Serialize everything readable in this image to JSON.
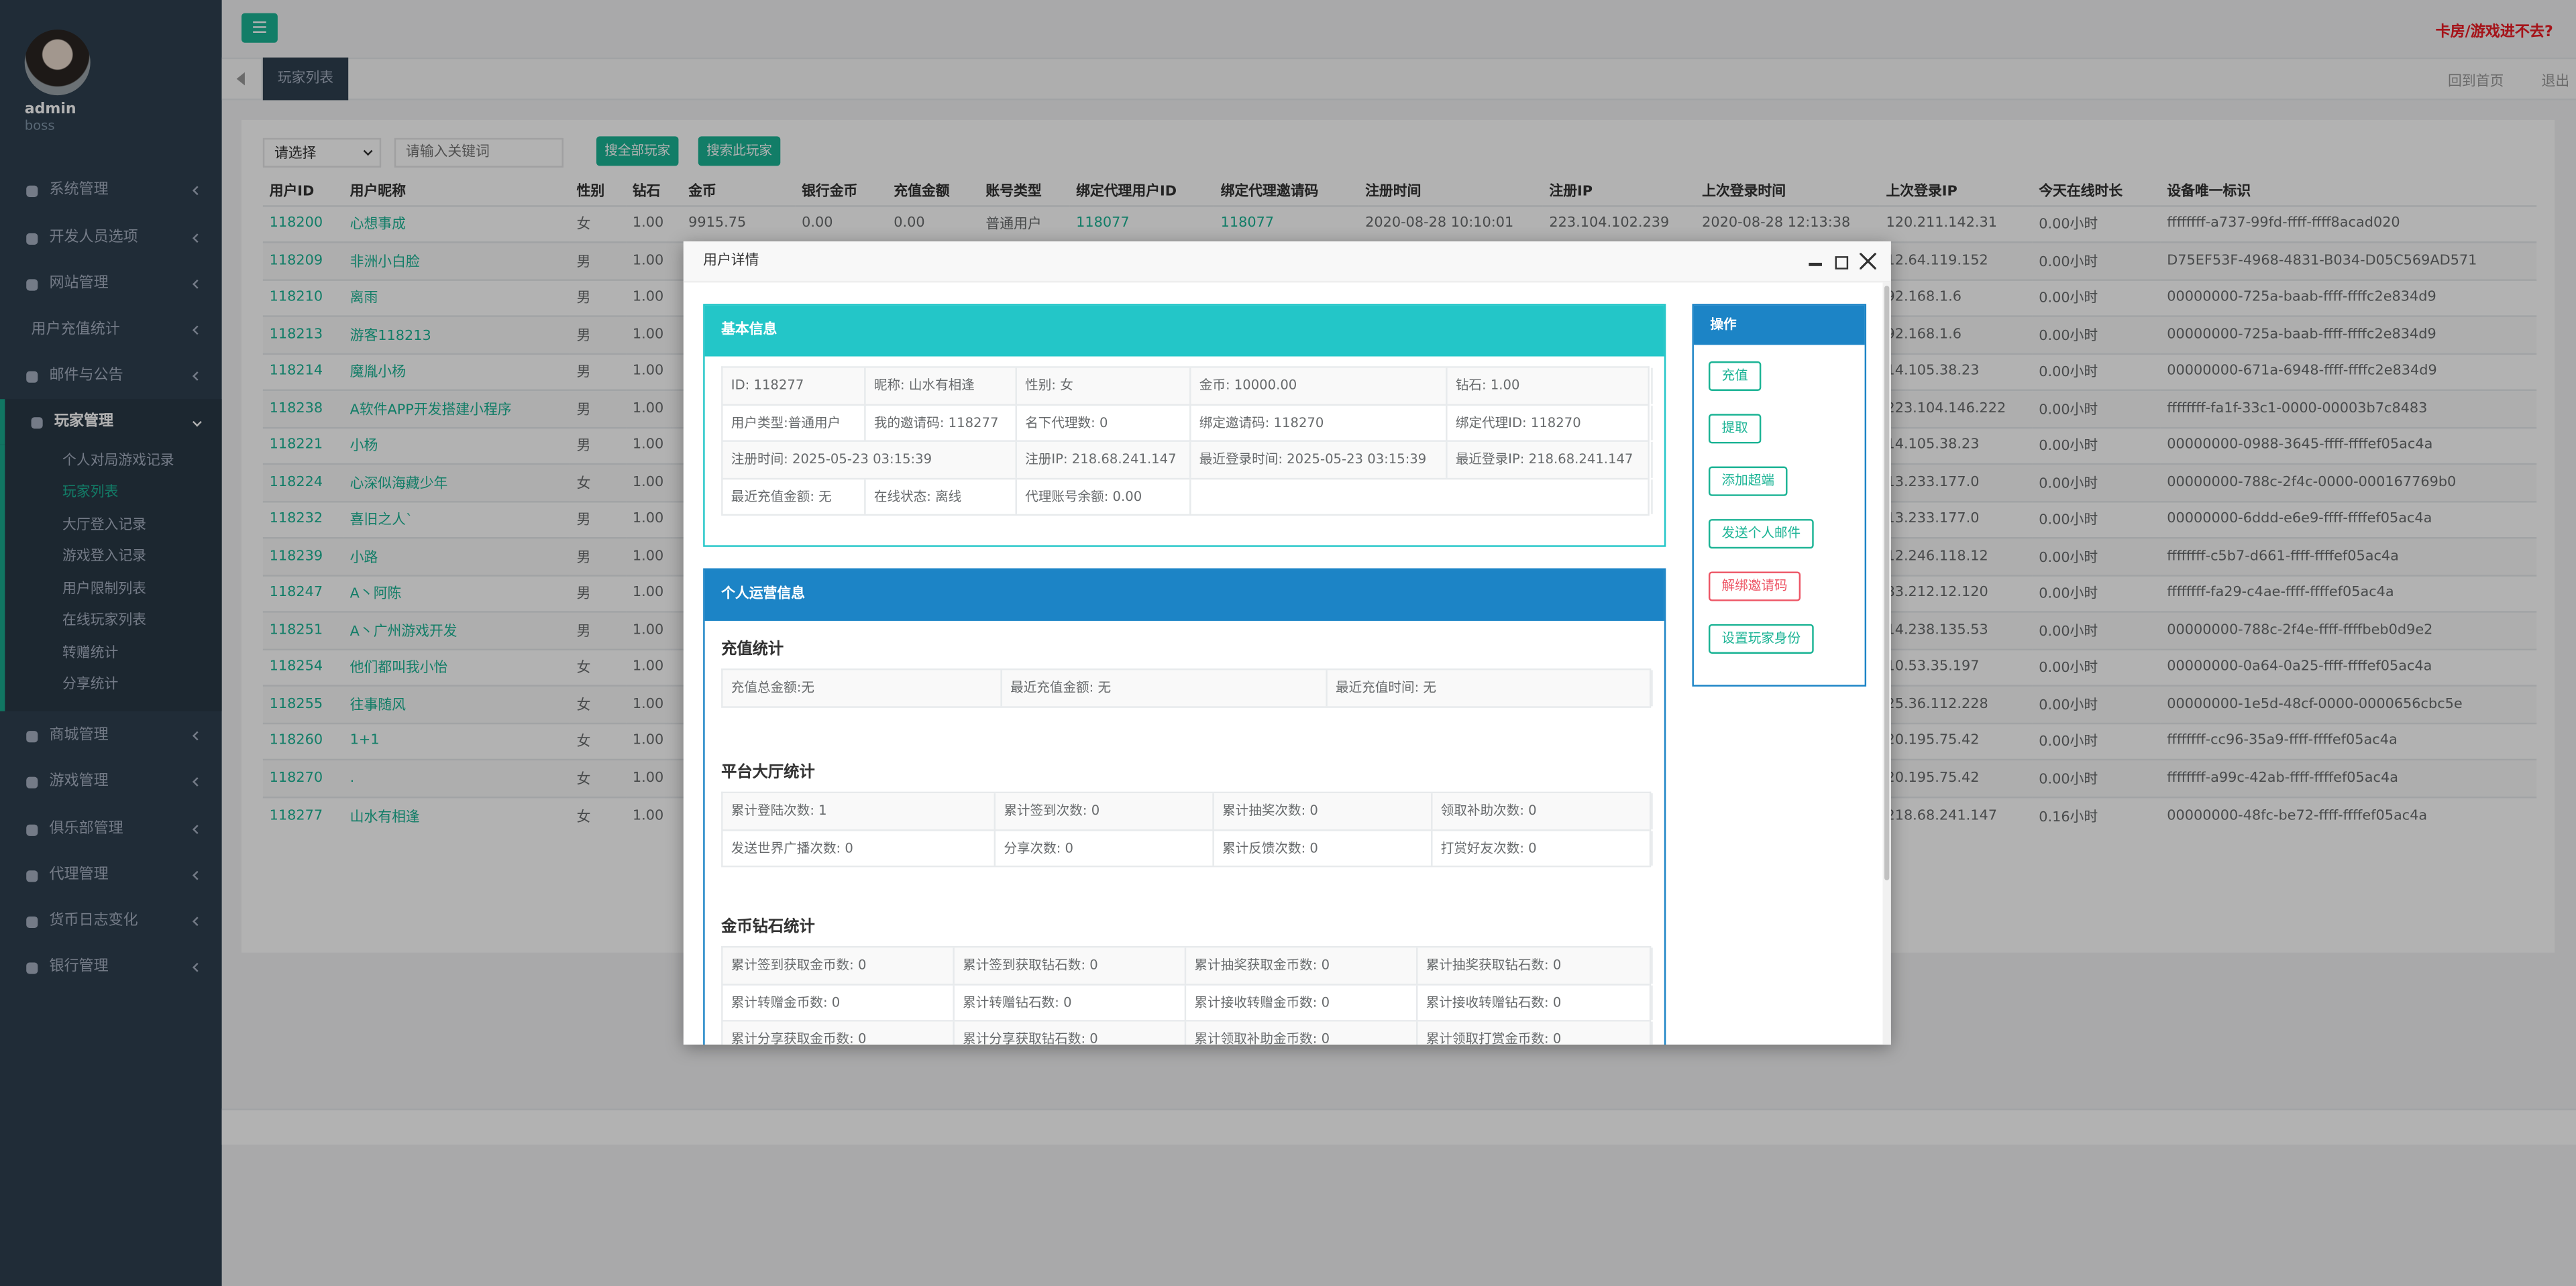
{
  "sidebar": {
    "username": "admin",
    "role": "boss",
    "menu": [
      {
        "label": "系统管理"
      },
      {
        "label": "开发人员选项"
      },
      {
        "label": "网站管理"
      },
      {
        "label": "用户充值统计"
      },
      {
        "label": "邮件与公告"
      },
      {
        "label": "玩家管理",
        "children": [
          "个人对局游戏记录",
          "玩家列表",
          "大厅登入记录",
          "游戏登入记录",
          "用户限制列表",
          "在线玩家列表",
          "转赠统计",
          "分享统计"
        ]
      },
      {
        "label": "商城管理"
      },
      {
        "label": "游戏管理"
      },
      {
        "label": "俱乐部管理"
      },
      {
        "label": "代理管理"
      },
      {
        "label": "货币日志变化"
      },
      {
        "label": "银行管理"
      }
    ]
  },
  "header": {
    "notice": "卡房/游戏进不去?",
    "tab": "玩家列表",
    "home": "回到首页",
    "logout": "退出"
  },
  "toolbar": {
    "select": "请选择",
    "search_placeholder": "请输入关键词",
    "buttons": [
      "搜全部玩家",
      "搜索此玩家"
    ]
  },
  "table": {
    "columns": [
      "用户ID",
      "用户昵称",
      "性别",
      "钻石",
      "金币",
      "银行金币",
      "充值金额",
      "账号类型",
      "绑定代理用户ID",
      "绑定代理邀请码",
      "注册时间",
      "注册IP",
      "上次登录时间",
      "上次登录IP",
      "今天在线时长",
      "设备唯一标识"
    ],
    "rows": [
      {
        "id": "118200",
        "nickname": "心想事成",
        "gender": "女",
        "diamond": "1.00",
        "gold": "9915.75",
        "bank_gold": "0.00",
        "recharge": "0.00",
        "account_type": "普通用户",
        "agent_id": "118077",
        "agent_code": "118077",
        "register_time": "2020-08-28 10:10:01",
        "register_ip": "223.104.102.239",
        "last_login_time": "2020-08-28 12:13:38",
        "last_login_ip": "120.211.142.31",
        "online": "0.00小时",
        "device": "ffffffff-a737-99fd-ffff-ffff8acad020"
      },
      {
        "id": "118209",
        "nickname": "非洲小白脸",
        "gender": "男",
        "diamond": "1.00",
        "last_login_ip": "12.64.119.152",
        "online": "0.00小时",
        "device": "D75EF53F-4968-4831-B034-D05C569AD571"
      },
      {
        "id": "118210",
        "nickname": "离雨",
        "gender": "男",
        "diamond": "1.00",
        "last_login_ip": "92.168.1.6",
        "online": "0.00小时",
        "device": "00000000-725a-baab-ffff-ffffc2e834d9"
      },
      {
        "id": "118213",
        "nickname": "游客118213",
        "gender": "男",
        "diamond": "1.00",
        "last_login_ip": "92.168.1.6",
        "online": "0.00小时",
        "device": "00000000-725a-baab-ffff-ffffc2e834d9"
      },
      {
        "id": "118214",
        "nickname": "魔胤小杨",
        "gender": "男",
        "diamond": "1.00",
        "last_login_ip": "14.105.38.23",
        "online": "0.00小时",
        "device": "00000000-671a-6948-ffff-ffffc2e834d9"
      },
      {
        "id": "118238",
        "nickname": "A软件APP开发搭建小程序",
        "gender": "男",
        "diamond": "1.00",
        "last_login_ip": "223.104.146.222",
        "online": "0.00小时",
        "device": "ffffffff-fa1f-33c1-0000-00003b7c8483"
      },
      {
        "id": "118221",
        "nickname": "小杨",
        "gender": "男",
        "diamond": "1.00",
        "last_login_ip": "14.105.38.23",
        "online": "0.00小时",
        "device": "00000000-0988-3645-ffff-ffffef05ac4a"
      },
      {
        "id": "118224",
        "nickname": "心深似海藏少年",
        "gender": "女",
        "diamond": "1.00",
        "last_login_ip": "13.233.177.0",
        "online": "0.00小时",
        "device": "00000000-788c-2f4c-0000-000167769b0"
      },
      {
        "id": "118232",
        "nickname": "喜旧之人`",
        "gender": "男",
        "diamond": "1.00",
        "last_login_ip": "13.233.177.0",
        "online": "0.00小时",
        "device": "00000000-6ddd-e6e9-ffff-ffffef05ac4a"
      },
      {
        "id": "118239",
        "nickname": "小路",
        "gender": "男",
        "diamond": "1.00",
        "last_login_ip": "12.246.118.12",
        "online": "0.00小时",
        "device": "ffffffff-c5b7-d661-ffff-ffffef05ac4a"
      },
      {
        "id": "118247",
        "nickname": "A丶阿陈",
        "gender": "男",
        "diamond": "1.00",
        "last_login_ip": "83.212.12.120",
        "online": "0.00小时",
        "device": "ffffffff-fa29-c4ae-ffff-ffffef05ac4a"
      },
      {
        "id": "118251",
        "nickname": "A丶广州游戏开发",
        "gender": "男",
        "diamond": "1.00",
        "last_login_ip": "14.238.135.53",
        "online": "0.00小时",
        "device": "00000000-788c-2f4e-ffff-ffffbeb0d9e2"
      },
      {
        "id": "118254",
        "nickname": "他们都叫我小怡",
        "gender": "女",
        "diamond": "1.00",
        "last_login_ip": "10.53.35.197",
        "online": "0.00小时",
        "device": "00000000-0a64-0a25-ffff-ffffef05ac4a"
      },
      {
        "id": "118255",
        "nickname": "往事随风",
        "gender": "女",
        "diamond": "1.00",
        "last_login_ip": "25.36.112.228",
        "online": "0.00小时",
        "device": "00000000-1e5d-48cf-0000-0000656cbc5e"
      },
      {
        "id": "118260",
        "nickname": "1+1",
        "gender": "女",
        "diamond": "1.00",
        "last_login_ip": "20.195.75.42",
        "online": "0.00小时",
        "device": "ffffffff-cc96-35a9-ffff-ffffef05ac4a"
      },
      {
        "id": "118270",
        "nickname": ".",
        "gender": "女",
        "diamond": "1.00",
        "last_login_ip": "20.195.75.42",
        "online": "0.00小时",
        "device": "ffffffff-a99c-42ab-ffff-ffffef05ac4a"
      },
      {
        "id": "118277",
        "nickname": "山水有相逢",
        "gender": "女",
        "diamond": "1.00",
        "last_login_ip": "218.68.241.147",
        "online": "0.16小时",
        "device": "00000000-48fc-be72-ffff-ffffef05ac4a"
      }
    ]
  },
  "modal": {
    "title": "用户详情",
    "basic": {
      "title": "基本信息",
      "rows": [
        [
          "ID: 118277",
          "昵称: 山水有相逢",
          "性别: 女",
          "金币: 10000.00",
          "钻石: 1.00"
        ],
        [
          "用户类型:普通用户",
          "我的邀请码: 118277",
          "名下代理数: 0",
          "绑定邀请码: 118270",
          "绑定代理ID: 118270"
        ],
        [
          "注册时间: 2025-05-23 03:15:39",
          "注册IP: 218.68.241.147",
          "最近登录时间: 2025-05-23 03:15:39",
          "最近登录IP: 218.68.241.147"
        ],
        [
          "最近充值金额: 无",
          "在线状态: 离线",
          "代理账号余额: 0.00"
        ]
      ]
    },
    "operations": {
      "title": "个人运营信息",
      "sections": [
        {
          "title": "充值统计",
          "rows": [
            [
              "充值总金额:无",
              "最近充值金额: 无",
              "最近充值时间: 无"
            ]
          ]
        },
        {
          "title": "平台大厅统计",
          "rows": [
            [
              "累计登陆次数: 1",
              "累计签到次数: 0",
              "累计抽奖次数: 0",
              "领取补助次数: 0"
            ],
            [
              "发送世界广播次数: 0",
              "分享次数: 0",
              "累计反馈次数: 0",
              "打赏好友次数: 0"
            ]
          ]
        },
        {
          "title": "金币钻石统计",
          "rows": [
            [
              "累计签到获取金币数: 0",
              "累计签到获取钻石数: 0",
              "累计抽奖获取金币数: 0",
              "累计抽奖获取钻石数: 0"
            ],
            [
              "累计转赠金币数: 0",
              "累计转赠钻石数: 0",
              "累计接收转赠金币数: 0",
              "累计接收转赠钻石数: 0"
            ],
            [
              "累计分享获取金币数: 0",
              "累计分享获取钻石数: 0",
              "累计领取补助金币数: 0",
              "累计领取打赏金币数: 0"
            ]
          ]
        }
      ]
    },
    "actions": {
      "title": "操作",
      "buttons": [
        "充值",
        "提取",
        "添加超端",
        "发送个人邮件",
        "解绑邀请码",
        "设置玩家身份"
      ]
    }
  }
}
